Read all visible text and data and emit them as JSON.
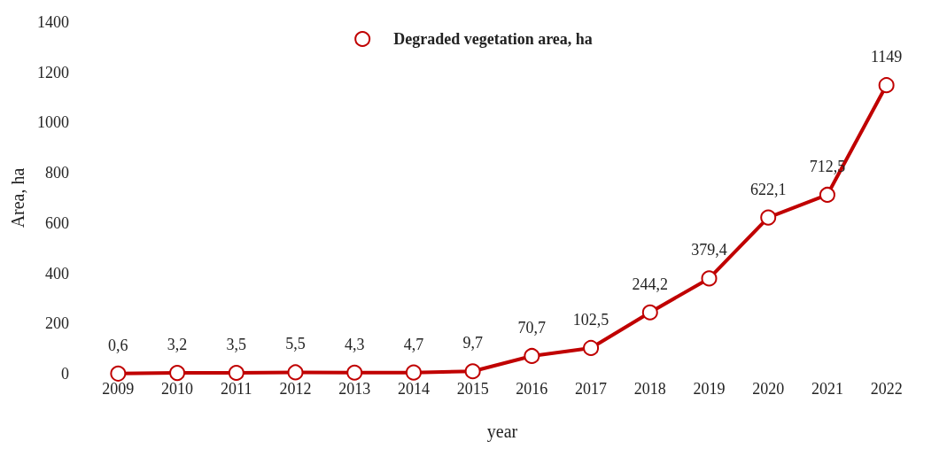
{
  "chart_data": {
    "type": "line",
    "xlabel": "year",
    "ylabel": "Area, ha",
    "categories": [
      "2009",
      "2010",
      "2011",
      "2012",
      "2013",
      "2014",
      "2015",
      "2016",
      "2017",
      "2018",
      "2019",
      "2020",
      "2021",
      "2022"
    ],
    "series": [
      {
        "name": "Degraded vegetation area, ha",
        "color": "#c00000",
        "values": [
          0.6,
          3.2,
          3.5,
          5.5,
          4.3,
          4.7,
          9.7,
          70.7,
          102.5,
          244.2,
          379.4,
          622.1,
          712.5,
          1149
        ],
        "value_labels": [
          "0,6",
          "3,2",
          "3,5",
          "5,5",
          "4,3",
          "4,7",
          "9,7",
          "70,7",
          "102,5",
          "244,2",
          "379,4",
          "622,1",
          "712,5",
          "1149"
        ]
      }
    ],
    "ylim": [
      0,
      1400
    ],
    "yticks": [
      0,
      200,
      400,
      600,
      800,
      1000,
      1200,
      1400
    ],
    "grid": false,
    "legend": "top",
    "marker": "circle",
    "line_style": "solid"
  }
}
